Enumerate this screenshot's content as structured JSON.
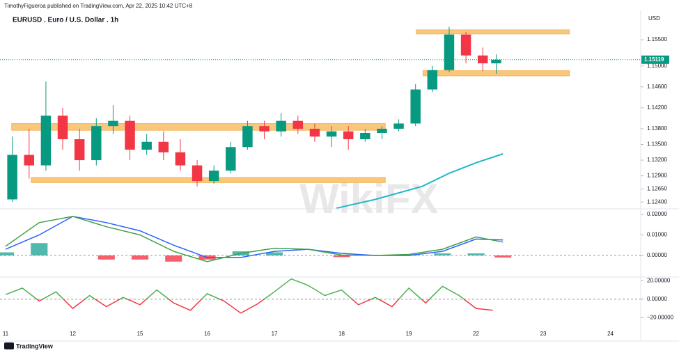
{
  "header": {
    "publisher": "TimothyFigueroa published on TradingView.com, Apr 22, 2025 10:42 UTC+8",
    "symbol": "EURUSD . Euro / U.S. Dollar . 1h"
  },
  "currency": "USD",
  "footer": "TradingView",
  "watermark": "WikiFX",
  "chart_data": [
    {
      "type": "candlestick",
      "x": [
        0.1,
        0.35,
        0.6,
        0.85,
        1.1,
        1.35,
        1.6,
        1.85,
        2.1,
        2.35,
        2.6,
        2.85,
        3.1,
        3.35,
        3.6,
        3.85,
        4.1,
        4.35,
        4.6,
        4.85,
        5.1,
        5.35,
        5.6,
        5.85,
        6.1,
        6.35,
        6.6,
        6.85,
        7.1,
        7.3
      ],
      "open": [
        1.1245,
        1.133,
        1.131,
        1.1405,
        1.136,
        1.132,
        1.1385,
        1.1395,
        1.134,
        1.1355,
        1.1335,
        1.131,
        1.128,
        1.13,
        1.1345,
        1.1385,
        1.1375,
        1.1395,
        1.138,
        1.1365,
        1.1375,
        1.136,
        1.1372,
        1.138,
        1.139,
        1.1455,
        1.1492,
        1.156,
        1.152,
        1.1505
      ],
      "high": [
        1.1365,
        1.138,
        1.147,
        1.142,
        1.138,
        1.14,
        1.1425,
        1.1405,
        1.137,
        1.1375,
        1.136,
        1.132,
        1.131,
        1.1355,
        1.1395,
        1.1395,
        1.141,
        1.1405,
        1.139,
        1.1385,
        1.1385,
        1.138,
        1.1385,
        1.1398,
        1.1465,
        1.15,
        1.1575,
        1.1565,
        1.1535,
        1.1522
      ],
      "low": [
        1.124,
        1.1285,
        1.13,
        1.134,
        1.13,
        1.131,
        1.137,
        1.132,
        1.133,
        1.132,
        1.13,
        1.127,
        1.1275,
        1.1295,
        1.134,
        1.136,
        1.1365,
        1.137,
        1.1355,
        1.1345,
        1.134,
        1.1355,
        1.136,
        1.1375,
        1.1385,
        1.145,
        1.1488,
        1.1505,
        1.149,
        1.1485
      ],
      "close": [
        1.133,
        1.131,
        1.1405,
        1.136,
        1.132,
        1.1385,
        1.1395,
        1.134,
        1.1355,
        1.1335,
        1.131,
        1.128,
        1.13,
        1.1345,
        1.1385,
        1.1375,
        1.1395,
        1.138,
        1.1365,
        1.1375,
        1.136,
        1.1372,
        1.138,
        1.139,
        1.1455,
        1.1492,
        1.156,
        1.152,
        1.1505,
        1.15119
      ],
      "up_color": "#089981",
      "down_color": "#f23645",
      "zones": [
        {
          "x": [
            6.11,
            8.39
          ],
          "y": [
            1.1561,
            1.1569
          ]
        },
        {
          "x": [
            6.21,
            8.39
          ],
          "y": [
            1.1481,
            1.1491
          ]
        },
        {
          "x": [
            0.09,
            5.65
          ],
          "y": [
            1.1377,
            1.139
          ]
        },
        {
          "x": [
            0.38,
            5.65
          ],
          "y": [
            1.1277,
            1.1287
          ]
        }
      ],
      "zone_color": "#f9c77c",
      "series": [
        {
          "x": [
            4.92,
            5.5,
            6.2,
            6.6,
            7.0,
            7.4
          ],
          "values": [
            1.1228,
            1.1245,
            1.127,
            1.1295,
            1.1315,
            1.1332
          ],
          "color": "#1eb8c8"
        }
      ],
      "xlim": [
        -0.083,
        9.45
      ],
      "xticks": [
        {
          "value": 0,
          "label": "11"
        },
        {
          "value": 1,
          "label": "12"
        },
        {
          "value": 2,
          "label": "15"
        },
        {
          "value": 3,
          "label": "16"
        },
        {
          "value": 4,
          "label": "17"
        },
        {
          "value": 5,
          "label": "18"
        },
        {
          "value": 6,
          "label": "19"
        },
        {
          "value": 7,
          "label": "22"
        },
        {
          "value": 8,
          "label": "23"
        },
        {
          "value": 9,
          "label": "24"
        }
      ],
      "ylim": [
        1.1227,
        1.1606
      ],
      "yticks": [
        {
          "value": 1.155,
          "label": "1.15500"
        },
        {
          "value": 1.15,
          "label": "1.15000"
        },
        {
          "value": 1.146,
          "label": "1.14600"
        },
        {
          "value": 1.142,
          "label": "1.14200"
        },
        {
          "value": 1.138,
          "label": "1.13800"
        },
        {
          "value": 1.135,
          "label": "1.13500"
        },
        {
          "value": 1.132,
          "label": "1.13200"
        },
        {
          "value": 1.129,
          "label": "1.12900"
        },
        {
          "value": 1.1265,
          "label": "1.12650"
        },
        {
          "value": 1.124,
          "label": "1.12400"
        }
      ]
    },
    {
      "type": "line",
      "x": [
        0,
        0.5,
        1.0,
        1.5,
        2.0,
        2.5,
        3.0,
        3.5,
        4.0,
        4.5,
        5.0,
        5.5,
        6.0,
        6.5,
        7.0,
        7.4
      ],
      "series": [
        {
          "kind": "bar",
          "color": "#26a69a",
          "negative_color": "#f23645",
          "values": [
            0.0015,
            0.006,
            0,
            -0.002,
            -0.002,
            -0.003,
            -0.002,
            0.002,
            0.0015,
            0,
            -0.0008,
            0,
            0.0005,
            0.001,
            0.001,
            -0.001
          ]
        },
        {
          "color": "#2962ff",
          "values": [
            0.003,
            0.01,
            0.019,
            0.016,
            0.012,
            0.005,
            -0.001,
            -0.001,
            0.002,
            0.003,
            0.001,
            0,
            0,
            0.002,
            0.008,
            0.0075
          ]
        },
        {
          "color": "#43a047",
          "values": [
            0.0045,
            0.016,
            0.019,
            0.014,
            0.01,
            0.002,
            -0.003,
            0.001,
            0.0035,
            0.003,
            0.0002,
            0,
            0.0005,
            0.003,
            0.009,
            0.0065
          ]
        }
      ],
      "ylim": [
        -0.0095,
        0.0227
      ],
      "yticks": [
        {
          "value": 0.02,
          "label": "0.02000"
        },
        {
          "value": 0.01,
          "label": "0.01000"
        },
        {
          "value": 0,
          "label": "0.00000"
        }
      ]
    },
    {
      "type": "line",
      "x": [
        0,
        0.25,
        0.5,
        0.75,
        1,
        1.25,
        1.5,
        1.75,
        2,
        2.25,
        2.5,
        2.75,
        3,
        3.25,
        3.5,
        3.75,
        4,
        4.25,
        4.5,
        4.75,
        5,
        5.25,
        5.5,
        5.75,
        6,
        6.25,
        6.5,
        6.75,
        7,
        7.25
      ],
      "series": [
        {
          "color": "#4caf50",
          "negative_color": "#f23645",
          "values": [
            5,
            12,
            -2,
            8,
            -10,
            4,
            -8,
            2,
            -6,
            10,
            -4,
            -12,
            6,
            -2,
            -15,
            -5,
            8,
            22,
            15,
            4,
            10,
            -6,
            2,
            -8,
            12,
            -4,
            14,
            4,
            -10,
            -12
          ]
        }
      ],
      "ylim": [
        -34,
        24
      ],
      "yticks": [
        {
          "value": 20,
          "label": "20.00000"
        },
        {
          "value": 0,
          "label": "0.00000"
        },
        {
          "value": -20,
          "label": "−20.00000"
        }
      ]
    }
  ]
}
